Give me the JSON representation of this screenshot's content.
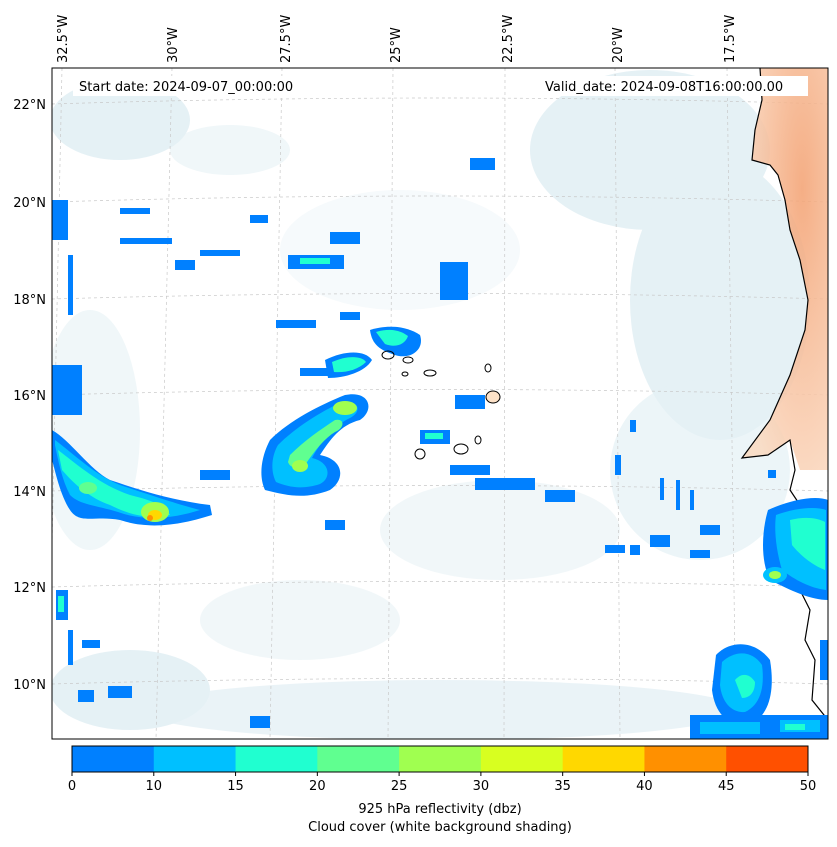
{
  "header": {
    "start_date": "Start date: 2024-09-07_00:00:00",
    "valid_date": "Valid_date: 2024-09-08T16:00:00.00"
  },
  "axes": {
    "lon_labels": [
      "32.5°W",
      "30°W",
      "27.5°W",
      "25°W",
      "22.5°W",
      "20°W",
      "17.5°W"
    ],
    "lat_labels": [
      "22°N",
      "20°N",
      "18°N",
      "16°N",
      "14°N",
      "12°N",
      "10°N"
    ]
  },
  "colorbar": {
    "ticks": [
      "0",
      "10",
      "15",
      "20",
      "25",
      "30",
      "35",
      "40",
      "45",
      "50"
    ],
    "colors": [
      "#0080ff",
      "#00c0ff",
      "#20ffd0",
      "#60ff90",
      "#a0ff50",
      "#d8ff20",
      "#ffd800",
      "#ff9000",
      "#ff5000"
    ],
    "label_line1": "925 hPa reflectivity (dbz)",
    "label_line2": "Cloud cover (white background shading)"
  },
  "map_colors": {
    "ocean_cloud": "#dcecf2",
    "land_shade": "#f6b58c",
    "island_fill": "#fde2c8",
    "coast": "#000000"
  }
}
